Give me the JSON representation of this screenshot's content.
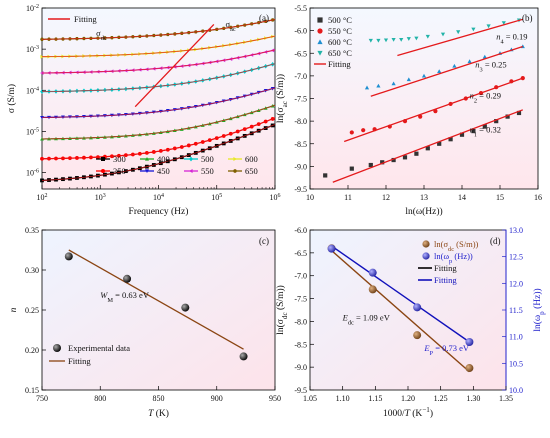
{
  "chart_data": [
    {
      "panel": "(a)",
      "type": "line",
      "xlabel": "Frequency (Hz)",
      "ylabel": "σ (S/m)",
      "xscale": "log",
      "yscale": "log",
      "xlim_exp": [
        2,
        6
      ],
      "ylim_exp": [
        -6.4,
        -2
      ],
      "xticks": [
        "10²",
        "10³",
        "10⁴",
        "10⁵",
        "10⁶"
      ],
      "yticks": [
        "10⁻⁶",
        "10⁻⁵",
        "10⁻⁴",
        "10⁻³",
        "10⁻²"
      ],
      "fit_label": "Fitting",
      "fit_color": "#e41a1c",
      "annotations": {
        "sdc": "σdc",
        "sac": "σac"
      },
      "series": [
        {
          "name": "300",
          "color": "#000000",
          "marker": "square",
          "log_sigma_dc": -6.25,
          "log_f_onset": 3.5,
          "slope": 0.56
        },
        {
          "name": "350",
          "color": "#ff0000",
          "marker": "circle",
          "log_sigma_dc": -5.68,
          "log_f_onset": 4.4,
          "slope": 0.6
        },
        {
          "name": "400",
          "color": "#22aa22",
          "marker": "triangle",
          "log_sigma_dc": -5.2,
          "log_f_onset": 4.6,
          "slope": 0.55
        },
        {
          "name": "450",
          "color": "#1515d6",
          "marker": "triangle-down",
          "log_sigma_dc": -4.68,
          "log_f_onset": 4.7,
          "slope": 0.5
        },
        {
          "name": "500",
          "color": "#00cccc",
          "marker": "diamond",
          "log_sigma_dc": -4.05,
          "log_f_onset": 4.8,
          "slope": 0.5
        },
        {
          "name": "550",
          "color": "#d627d6",
          "marker": "triangle-left",
          "log_sigma_dc": -3.6,
          "log_f_onset": 5.0,
          "slope": 0.45
        },
        {
          "name": "600",
          "color": "#e8e826",
          "marker": "triangle-right",
          "log_sigma_dc": -3.2,
          "log_f_onset": 5.2,
          "slope": 0.45
        },
        {
          "name": "650",
          "color": "#806000",
          "marker": "hexagon",
          "log_sigma_dc": -2.78,
          "log_f_onset": 5.2,
          "slope": 0.42
        }
      ],
      "guide_line": {
        "x": [
          3.6,
          4.95
        ],
        "y": [
          -4.4,
          -2.4
        ]
      }
    },
    {
      "panel": "(b)",
      "type": "scatter",
      "xlabel": "ln(ω(Hz))",
      "ylabel": "ln(σac (S/m))",
      "xlim": [
        10,
        16
      ],
      "ylim": [
        -9.5,
        -5.5
      ],
      "xticks": [
        10,
        11,
        12,
        13,
        14,
        15,
        16
      ],
      "yticks": [
        -9.5,
        -9.0,
        -8.5,
        -8.0,
        -7.5,
        -7.0,
        -6.5,
        -6.0,
        -5.5
      ],
      "fit_label": "Fitting",
      "series": [
        {
          "name": "500 °C",
          "color": "#333333",
          "marker": "square",
          "n": "n1 = 0.32",
          "fit": [
            [
              10.6,
              -9.35
            ],
            [
              15.6,
              -7.75
            ]
          ],
          "points": [
            [
              10.4,
              -9.2
            ],
            [
              11.1,
              -9.05
            ],
            [
              11.6,
              -8.97
            ],
            [
              11.9,
              -8.91
            ],
            [
              12.2,
              -8.86
            ],
            [
              12.5,
              -8.8
            ],
            [
              12.8,
              -8.72
            ],
            [
              13.1,
              -8.6
            ],
            [
              13.4,
              -8.5
            ],
            [
              13.7,
              -8.4
            ],
            [
              14.0,
              -8.3
            ],
            [
              14.3,
              -8.22
            ],
            [
              14.6,
              -8.12
            ],
            [
              14.9,
              -8.0
            ],
            [
              15.2,
              -7.9
            ],
            [
              15.5,
              -7.82
            ]
          ]
        },
        {
          "name": "550 °C",
          "color": "#e41a1c",
          "marker": "circle",
          "n": "n2 = 0.29",
          "fit": [
            [
              10.9,
              -8.45
            ],
            [
              15.6,
              -7.05
            ]
          ],
          "points": [
            [
              11.1,
              -8.25
            ],
            [
              11.4,
              -8.2
            ],
            [
              11.7,
              -8.18
            ],
            [
              12.1,
              -8.12
            ],
            [
              12.5,
              -8.0
            ],
            [
              12.9,
              -7.9
            ],
            [
              13.3,
              -7.78
            ],
            [
              13.7,
              -7.62
            ],
            [
              14.1,
              -7.5
            ],
            [
              14.5,
              -7.38
            ],
            [
              14.9,
              -7.25
            ],
            [
              15.3,
              -7.12
            ],
            [
              15.6,
              -7.05
            ]
          ]
        },
        {
          "name": "600 °C",
          "color": "#1f8fd1",
          "marker": "triangle",
          "n": "n3 = 0.25",
          "fit": [
            [
              11.6,
              -7.45
            ],
            [
              15.6,
              -6.35
            ]
          ],
          "points": [
            [
              11.5,
              -7.26
            ],
            [
              11.8,
              -7.22
            ],
            [
              12.2,
              -7.17
            ],
            [
              12.6,
              -7.08
            ],
            [
              13.0,
              -7.0
            ],
            [
              13.4,
              -6.9
            ],
            [
              13.8,
              -6.78
            ],
            [
              14.2,
              -6.68
            ],
            [
              14.6,
              -6.58
            ],
            [
              15.0,
              -6.5
            ],
            [
              15.3,
              -6.42
            ],
            [
              15.6,
              -6.35
            ]
          ]
        },
        {
          "name": "650 °C",
          "color": "#22b3a8",
          "marker": "triangle-down",
          "n": "n4 = 0.19",
          "fit": [
            [
              12.3,
              -6.55
            ],
            [
              15.6,
              -5.75
            ]
          ],
          "points": [
            [
              11.6,
              -6.22
            ],
            [
              11.8,
              -6.22
            ],
            [
              12.0,
              -6.21
            ],
            [
              12.2,
              -6.2
            ],
            [
              12.4,
              -6.2
            ],
            [
              12.6,
              -6.18
            ],
            [
              12.8,
              -6.17
            ],
            [
              13.1,
              -6.13
            ],
            [
              13.5,
              -6.08
            ],
            [
              13.9,
              -6.03
            ],
            [
              14.3,
              -5.97
            ],
            [
              14.7,
              -5.9
            ],
            [
              15.1,
              -5.83
            ],
            [
              15.5,
              -5.77
            ]
          ]
        }
      ]
    },
    {
      "panel": "(c)",
      "type": "scatter",
      "xlabel": "T (K)",
      "ylabel": "n",
      "xlim": [
        750,
        950
      ],
      "ylim": [
        0.15,
        0.35
      ],
      "xticks": [
        750,
        800,
        850,
        900,
        950
      ],
      "yticks": [
        0.15,
        0.2,
        0.25,
        0.3,
        0.35
      ],
      "annotation": "WM = 0.63 eV",
      "series": [
        {
          "name": "Experimental data",
          "color": "#000000",
          "points": [
            [
              773,
              0.317
            ],
            [
              823,
              0.289
            ],
            [
              873,
              0.253
            ],
            [
              923,
              0.192
            ]
          ]
        },
        {
          "name": "Fitting",
          "color": "#8b4513",
          "line": [
            [
              773,
              0.325
            ],
            [
              923,
              0.201
            ]
          ]
        }
      ]
    },
    {
      "panel": "(d)",
      "type": "scatter",
      "xlabel": "1000/T (K⁻¹)",
      "ylabel": "ln(σdc (S/m))",
      "y2label": "ln(ωp (Hz))",
      "xlim": [
        1.05,
        1.35
      ],
      "ylim": [
        -9.5,
        -6.0
      ],
      "y2lim": [
        10.0,
        13.0
      ],
      "xticks": [
        1.05,
        1.1,
        1.15,
        1.2,
        1.25,
        1.3,
        1.35
      ],
      "yticks": [
        -9.5,
        -9.0,
        -8.5,
        -8.0,
        -7.5,
        -7.0,
        -6.5,
        -6.0
      ],
      "y2ticks": [
        10.0,
        10.5,
        11.0,
        11.5,
        12.0,
        12.5,
        13.0
      ],
      "annotations": {
        "edc": "Edc = 1.09 eV",
        "ep": "Ep = 0.73 eV"
      },
      "series": [
        {
          "name": "ln(σdc (S/m))",
          "color": "#8b5a2b",
          "axis": "left",
          "points": [
            [
              1.083,
              -6.4
            ],
            [
              1.146,
              -7.3
            ],
            [
              1.214,
              -8.3
            ],
            [
              1.294,
              -9.02
            ]
          ]
        },
        {
          "name": "ln(ωp (Hz))",
          "color": "#3333cc",
          "axis": "right",
          "points": [
            [
              1.083,
              12.65
            ],
            [
              1.146,
              12.2
            ],
            [
              1.214,
              11.55
            ],
            [
              1.294,
              10.9
            ]
          ]
        },
        {
          "name": "Fitting",
          "color": "#8b4513",
          "axis": "left",
          "line": [
            [
              1.083,
              -6.45
            ],
            [
              1.294,
              -9.1
            ]
          ]
        },
        {
          "name": "Fitting",
          "color": "#1111bb",
          "axis": "right",
          "line": [
            [
              1.083,
              12.7
            ],
            [
              1.294,
              10.9
            ]
          ]
        }
      ]
    }
  ]
}
